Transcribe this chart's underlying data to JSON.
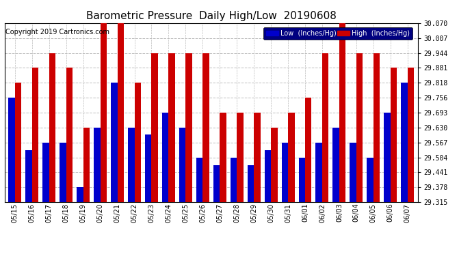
{
  "title": "Barometric Pressure  Daily High/Low  20190608",
  "copyright": "Copyright 2019 Cartronics.com",
  "legend_low": "Low  (Inches/Hg)",
  "legend_high": "High  (Inches/Hg)",
  "dates": [
    "05/15",
    "05/16",
    "05/17",
    "05/18",
    "05/19",
    "05/20",
    "05/21",
    "05/22",
    "05/23",
    "05/24",
    "05/25",
    "05/26",
    "05/27",
    "05/28",
    "05/29",
    "05/30",
    "05/31",
    "06/01",
    "06/02",
    "06/03",
    "06/04",
    "06/05",
    "06/06",
    "06/07"
  ],
  "low_values": [
    29.756,
    29.535,
    29.567,
    29.567,
    29.378,
    29.63,
    29.818,
    29.63,
    29.6,
    29.693,
    29.63,
    29.504,
    29.472,
    29.504,
    29.472,
    29.535,
    29.567,
    29.504,
    29.567,
    29.63,
    29.567,
    29.504,
    29.693,
    29.818
  ],
  "high_values": [
    29.818,
    29.881,
    29.944,
    29.881,
    29.63,
    30.07,
    30.07,
    29.818,
    29.944,
    29.944,
    29.944,
    29.944,
    29.693,
    29.693,
    29.693,
    29.63,
    29.693,
    29.756,
    29.944,
    30.07,
    29.944,
    29.944,
    29.881,
    29.881
  ],
  "ylim_min": 29.315,
  "ylim_max": 30.07,
  "yticks": [
    29.315,
    29.378,
    29.441,
    29.504,
    29.567,
    29.63,
    29.693,
    29.756,
    29.818,
    29.881,
    29.944,
    30.007,
    30.07
  ],
  "bar_color_low": "#0000cc",
  "bar_color_high": "#cc0000",
  "background_color": "#ffffff",
  "grid_color": "#bbbbbb",
  "title_fontsize": 11,
  "copyright_fontsize": 7,
  "tick_fontsize": 7,
  "legend_fontsize": 7,
  "bar_width": 0.38
}
